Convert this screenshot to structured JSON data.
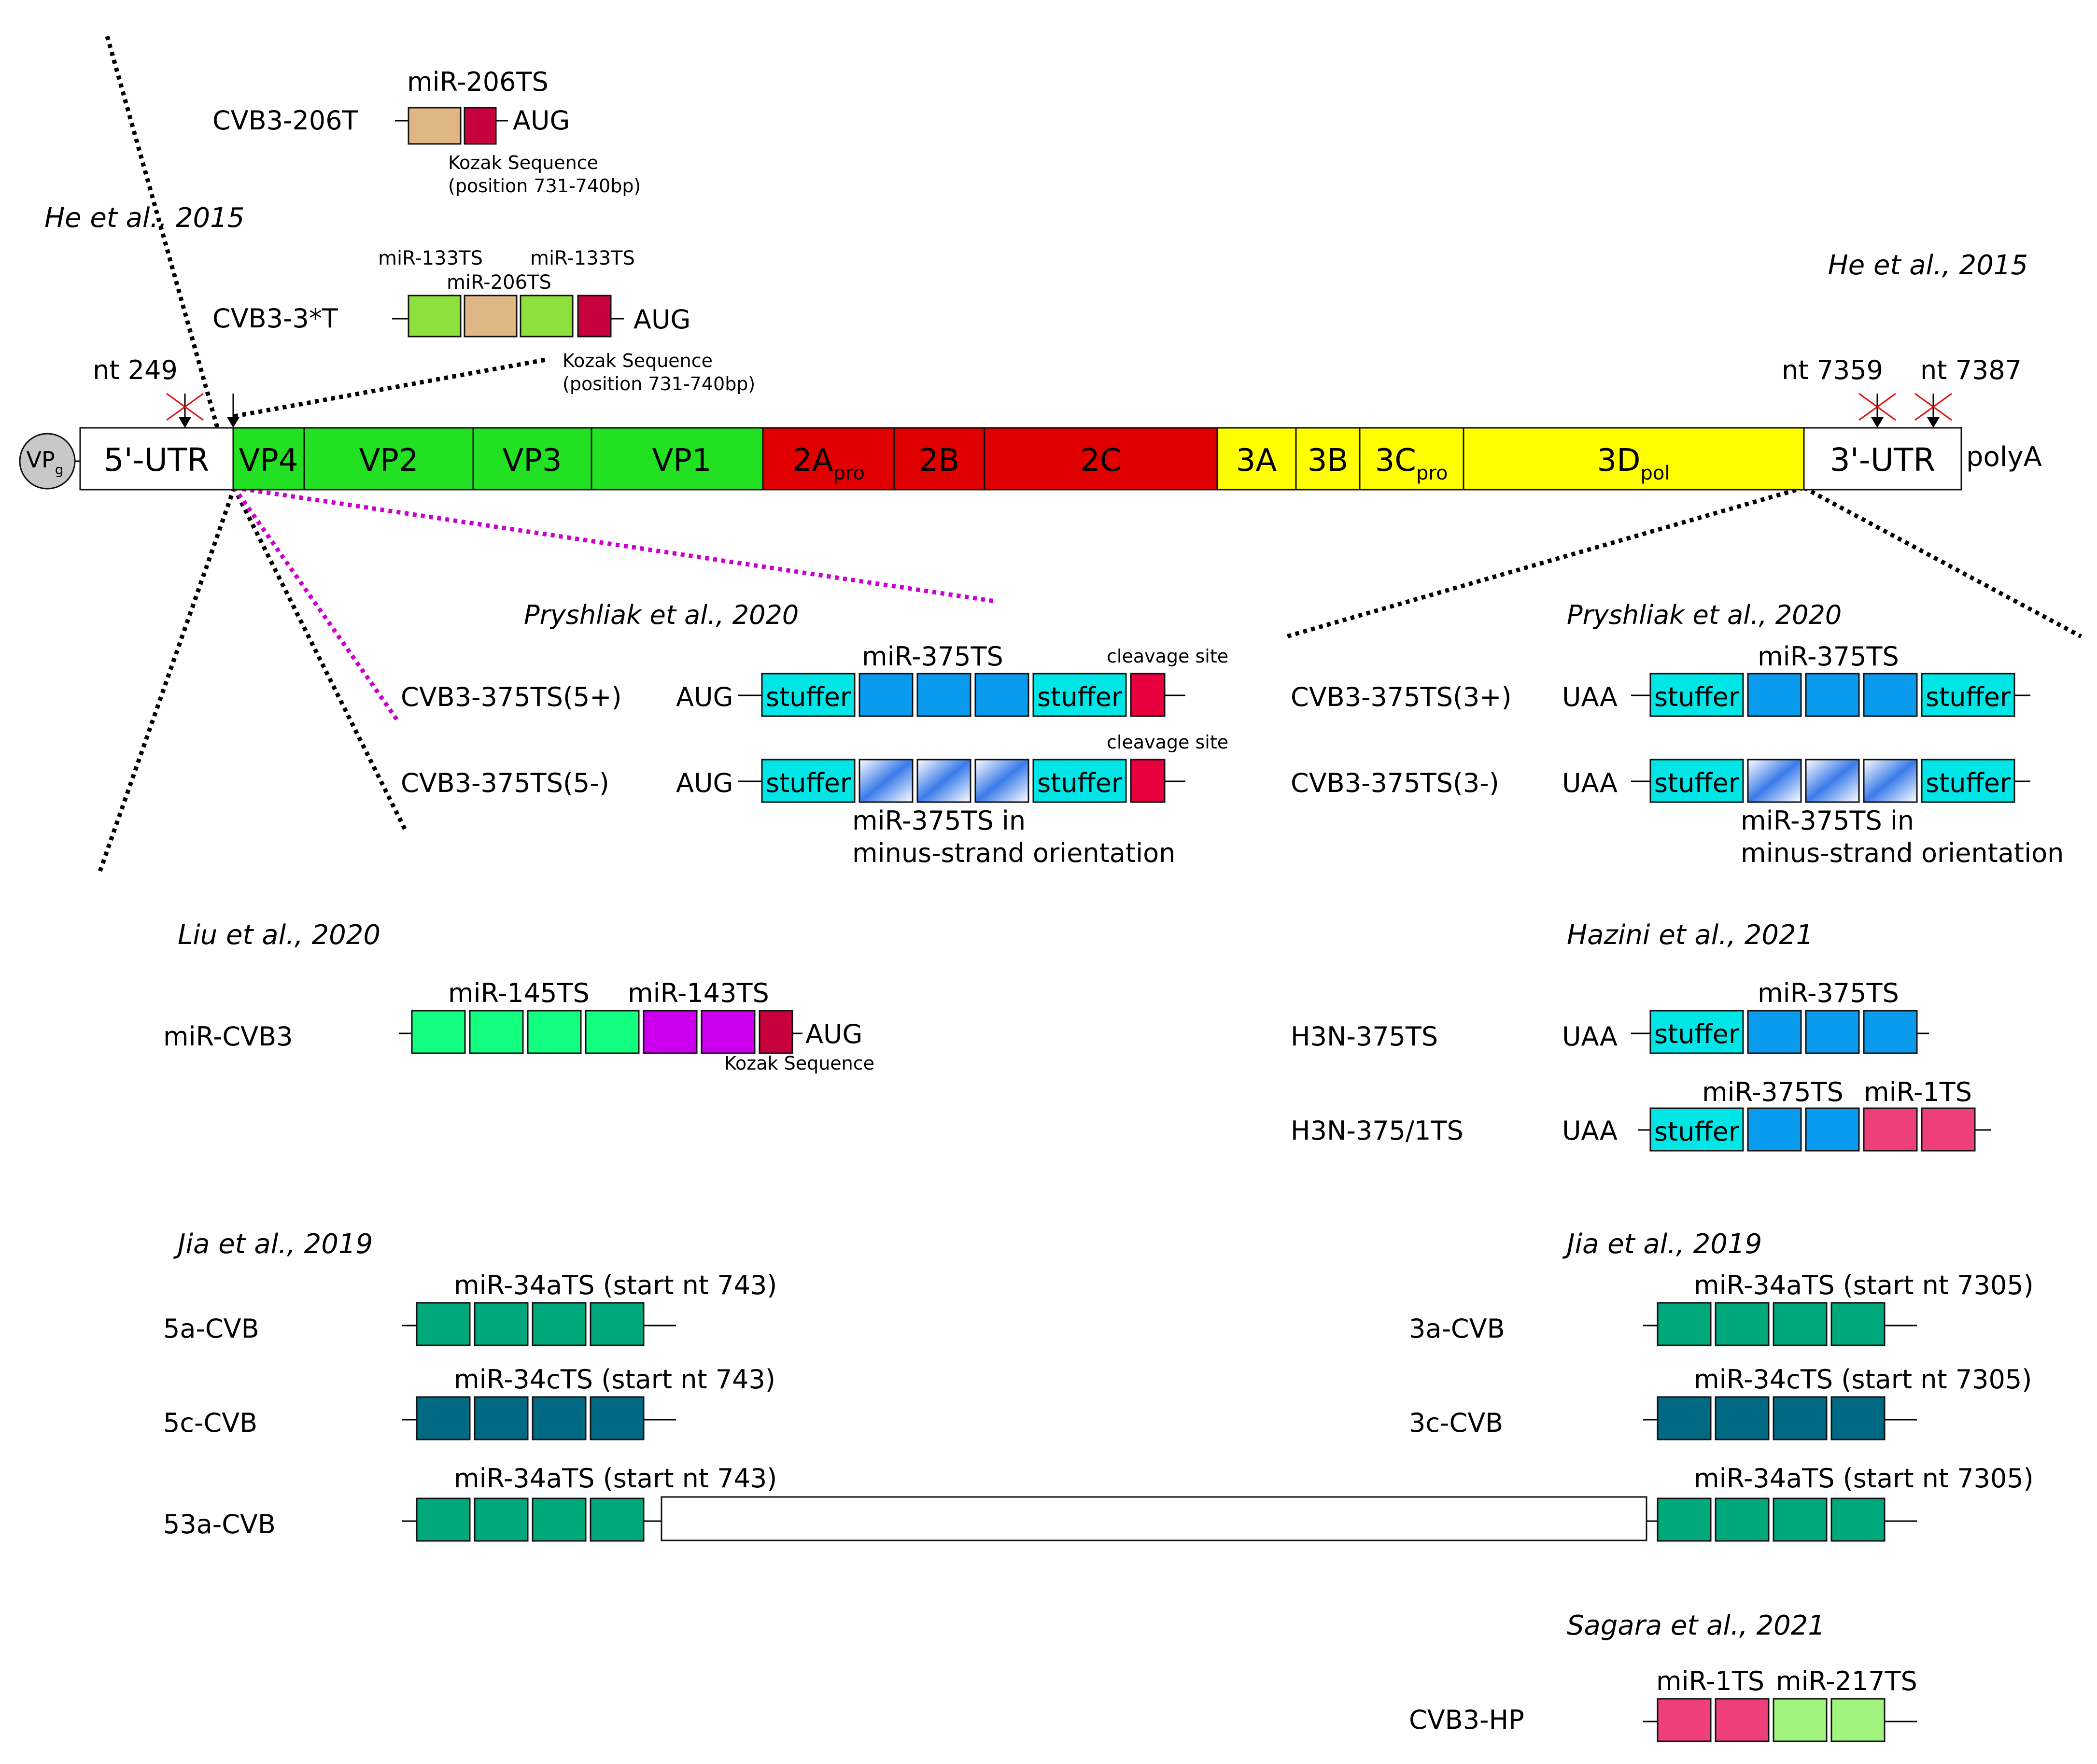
{
  "colors": {
    "kozak": "#c8003c",
    "mir206": "#e0b684",
    "mir133": "#8ee03c",
    "capsid": "#22e022",
    "p2": "#e00000",
    "p3": "#ffff00",
    "stuffer": "#00e5e5",
    "mir375": "#0a9bef",
    "mir145": "#12ff80",
    "mir143": "#cc00ee",
    "mir1": "#ee3f7b",
    "mir217": "#a2f57c",
    "mir34a": "#00a87c",
    "mir34c": "#006a84",
    "vpg": "#c8c8c8"
  },
  "genome": {
    "vpg": "VP",
    "vpg_sub": "g",
    "segments": [
      {
        "label": "5'-UTR",
        "sub": ""
      },
      {
        "label": "VP4",
        "sub": ""
      },
      {
        "label": "VP2",
        "sub": ""
      },
      {
        "label": "VP3",
        "sub": ""
      },
      {
        "label": "VP1",
        "sub": ""
      },
      {
        "label": "2A",
        "sub": "pro"
      },
      {
        "label": "2B",
        "sub": ""
      },
      {
        "label": "2C",
        "sub": ""
      },
      {
        "label": "3A",
        "sub": ""
      },
      {
        "label": "3B",
        "sub": ""
      },
      {
        "label": "3C",
        "sub": "pro"
      },
      {
        "label": "3D",
        "sub": "pol"
      },
      {
        "label": "3'-UTR",
        "sub": ""
      }
    ],
    "polyA": "polyA",
    "nt249": "nt 249",
    "nt7359": "nt 7359",
    "nt7387": "nt 7387"
  },
  "he2015": {
    "citation_left": "He et al., 2015",
    "citation_right": "He et al., 2015",
    "c206t": {
      "name": "CVB3-206T",
      "site": "miR-206TS",
      "aug": "AUG",
      "kozak1": "Kozak Sequence",
      "kozak2": "(position 731-740bp)"
    },
    "c3t": {
      "name": "CVB3-3*T",
      "site_a": "miR-133TS",
      "site_b": "miR-206TS",
      "site_c": "miR-133TS",
      "aug": "AUG",
      "kozak1": "Kozak Sequence",
      "kozak2": "(position 731-740bp)"
    }
  },
  "pryshliak5": {
    "citation": "Pryshliak et al., 2020",
    "plus": {
      "name": "CVB3-375TS(5+)",
      "aug": "AUG",
      "site": "miR-375TS",
      "cleavage": "cleavage site"
    },
    "minus": {
      "name": "CVB3-375TS(5-)",
      "aug": "AUG",
      "cleavage": "cleavage site",
      "note1": "miR-375TS in",
      "note2": "minus-strand orientation"
    },
    "stuffer": "stuffer"
  },
  "pryshliak3": {
    "citation": "Pryshliak et al., 2020",
    "plus": {
      "name": "CVB3-375TS(3+)",
      "uaa": "UAA",
      "site": "miR-375TS"
    },
    "minus": {
      "name": "CVB3-375TS(3-)",
      "uaa": "UAA",
      "note1": "miR-375TS in",
      "note2": "minus-strand orientation"
    },
    "stuffer": "stuffer"
  },
  "liu2020": {
    "citation": "Liu et al., 2020",
    "name": "miR-CVB3",
    "site_a": "miR-145TS",
    "site_b": "miR-143TS",
    "aug": "AUG",
    "kozak": "Kozak Sequence"
  },
  "hazini2021": {
    "citation": "Hazini et al., 2021",
    "h1": {
      "name": "H3N-375TS",
      "uaa": "UAA",
      "site": "miR-375TS"
    },
    "h2": {
      "name": "H3N-375/1TS",
      "uaa": "UAA",
      "site_a": "miR-375TS",
      "site_b": "miR-1TS"
    },
    "stuffer": "stuffer"
  },
  "jia2019": {
    "citation_left": "Jia et al., 2019",
    "citation_right": "Jia et al., 2019",
    "a5": {
      "name": "5a-CVB",
      "site": "miR-34aTS (start nt 743)"
    },
    "c5": {
      "name": "5c-CVB",
      "site": "miR-34cTS (start nt 743)"
    },
    "a53": {
      "name": "53a-CVB",
      "site_left": "miR-34aTS (start nt 743)",
      "site_right": "miR-34aTS (start nt 7305)"
    },
    "a3": {
      "name": "3a-CVB",
      "site": "miR-34aTS (start nt 7305)"
    },
    "c3": {
      "name": "3c-CVB",
      "site": "miR-34cTS (start nt 7305)"
    }
  },
  "sagara2021": {
    "citation": "Sagara et al., 2021",
    "name": "CVB3-HP",
    "site_a": "miR-1TS",
    "site_b": "miR-217TS"
  }
}
